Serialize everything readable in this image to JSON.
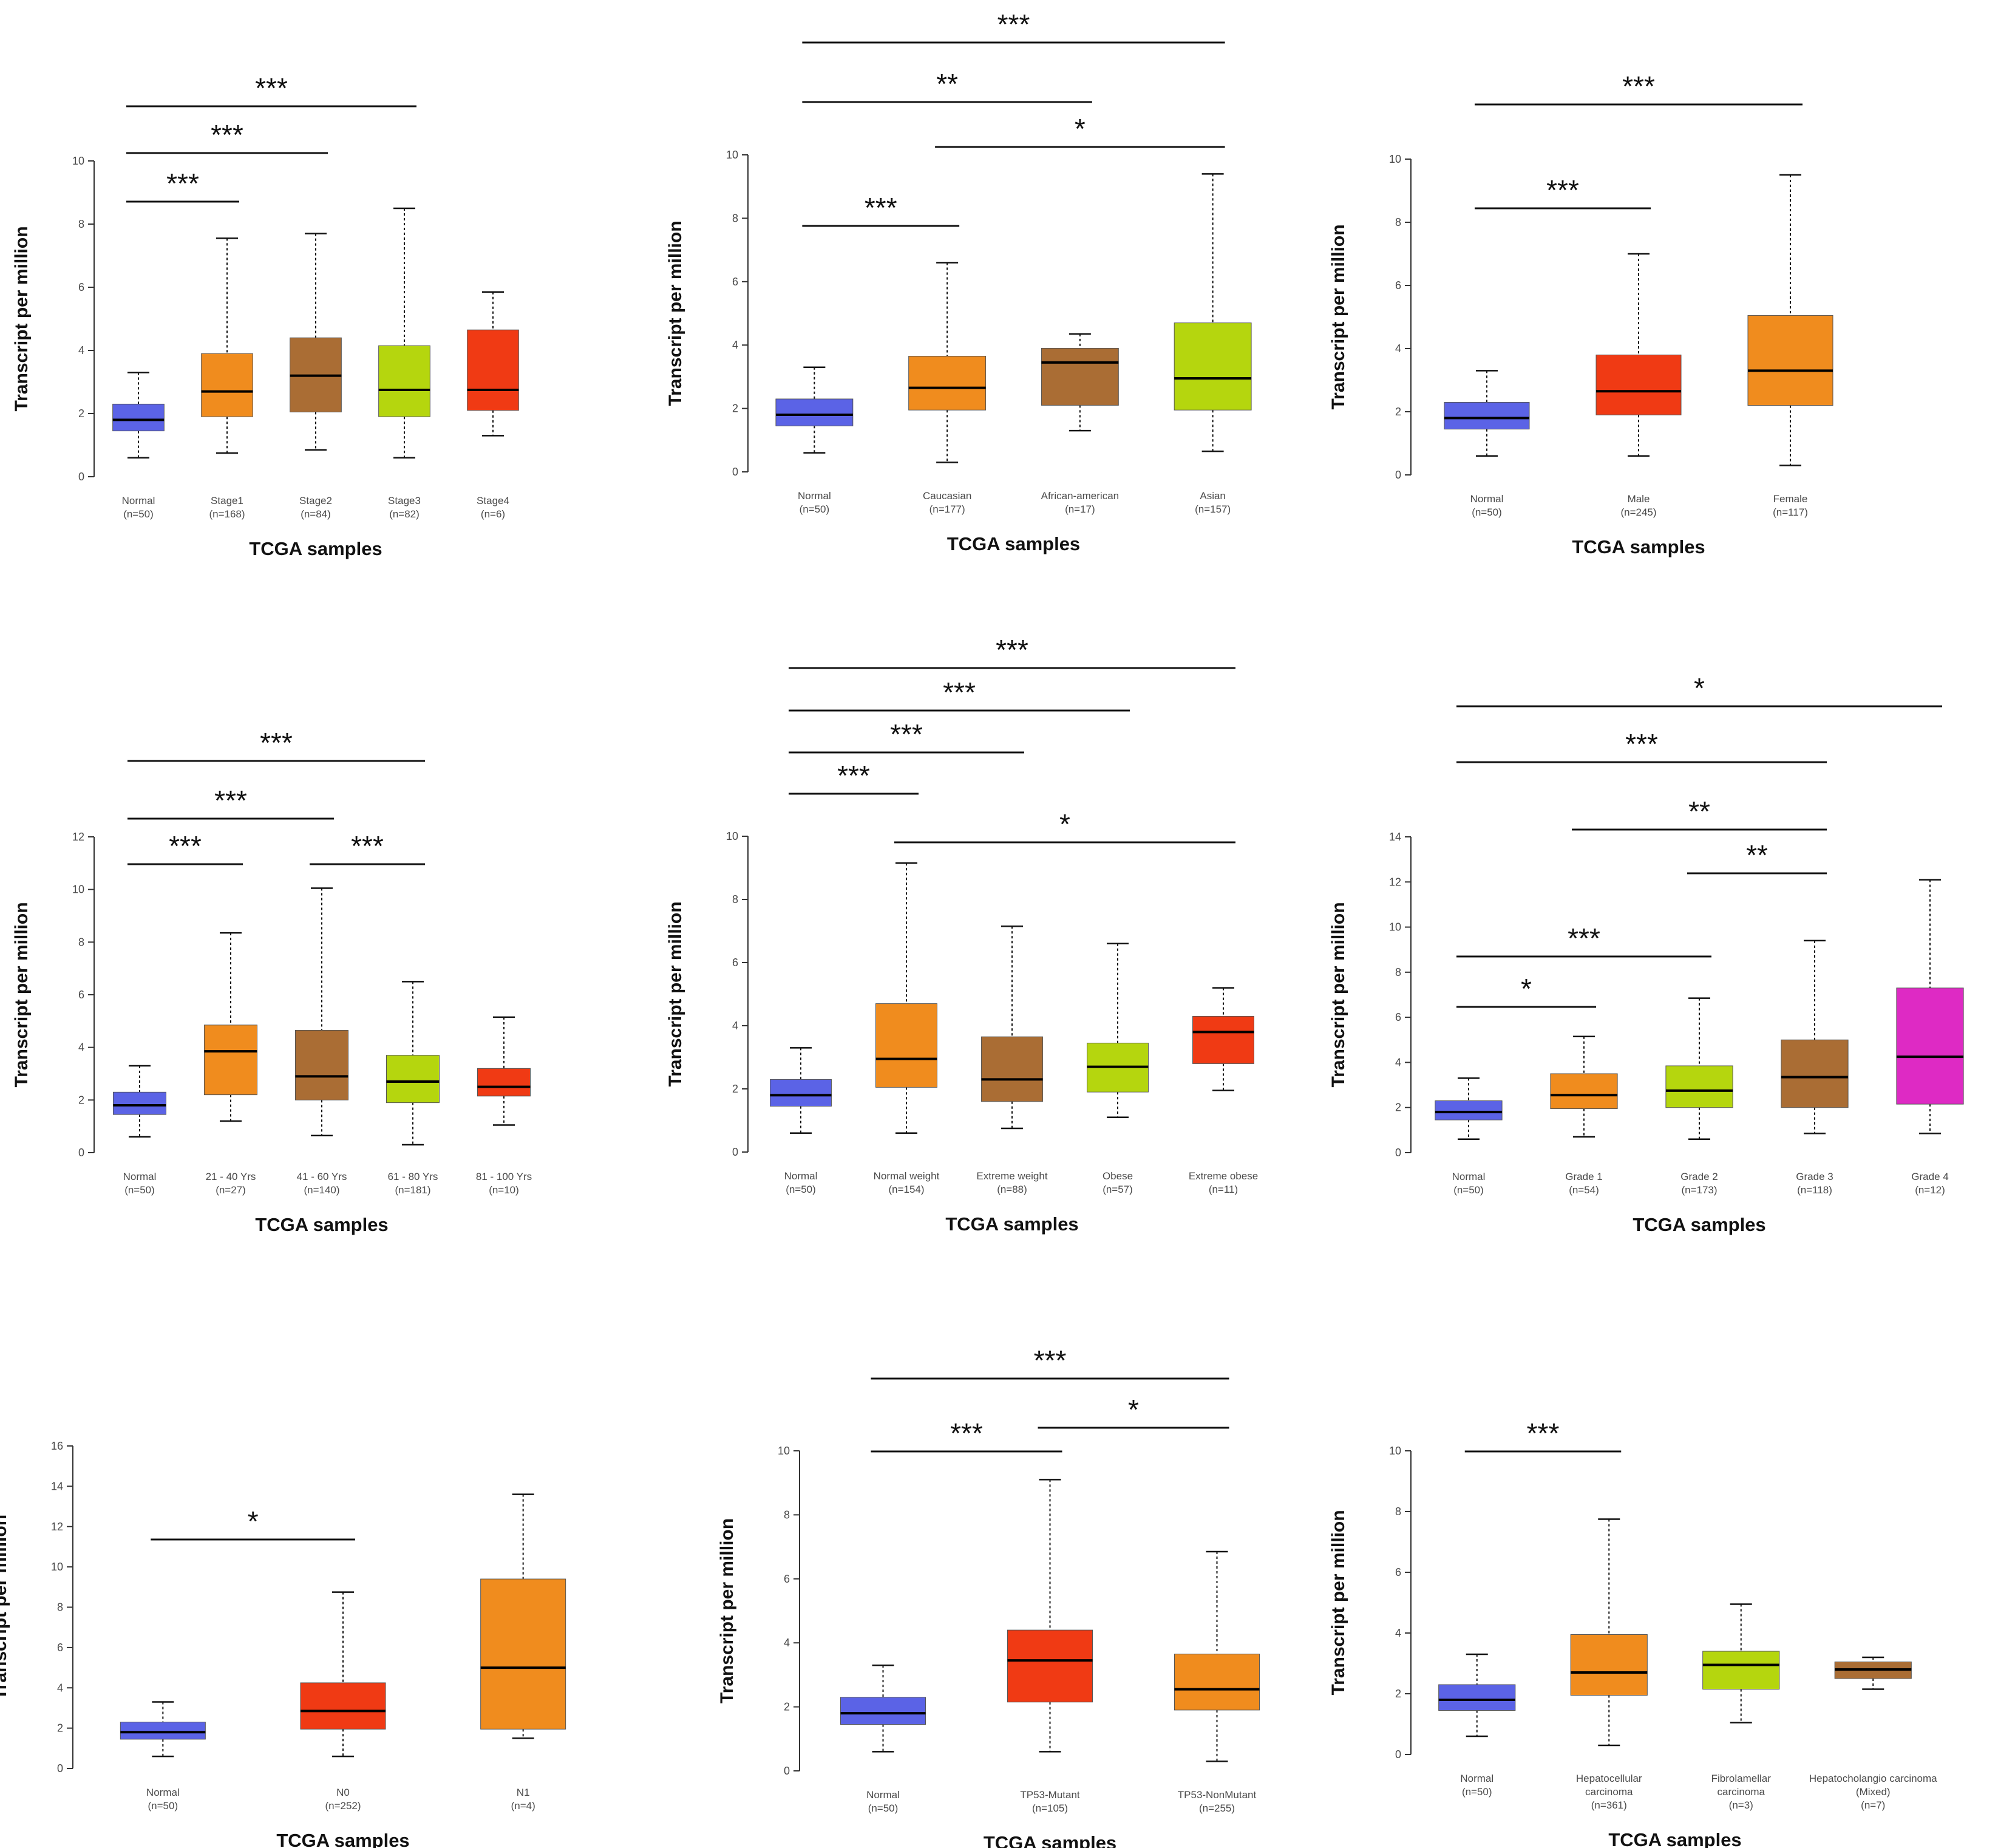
{
  "chart_data": [
    {
      "type": "boxplot",
      "title": "",
      "ylabel": "Transcript per million",
      "xlabel": "TCGA samples",
      "ylim": [
        0,
        10
      ],
      "yticks": [
        0,
        2,
        4,
        6,
        8,
        10
      ],
      "categories": [
        {
          "name": "Normal",
          "n": "(n=50)",
          "color": "#5b63e6",
          "min": 0.6,
          "q1": 1.45,
          "median": 1.8,
          "q3": 2.3,
          "max": 3.3
        },
        {
          "name": "Stage1",
          "n": "(n=168)",
          "color": "#f08c1e",
          "min": 0.75,
          "q1": 1.9,
          "median": 2.7,
          "q3": 3.9,
          "max": 7.55
        },
        {
          "name": "Stage2",
          "n": "(n=84)",
          "color": "#aa6d34",
          "min": 0.85,
          "q1": 2.05,
          "median": 3.2,
          "q3": 4.4,
          "max": 7.7
        },
        {
          "name": "Stage3",
          "n": "(n=82)",
          "color": "#b5d60e",
          "min": 0.6,
          "q1": 1.9,
          "median": 2.75,
          "q3": 4.15,
          "max": 8.5
        },
        {
          "name": "Stage4",
          "n": "(n=6)",
          "color": "#f03a14",
          "min": 1.3,
          "q1": 2.1,
          "median": 2.75,
          "q3": 4.65,
          "max": 5.85
        }
      ],
      "significance": [
        {
          "from": 0,
          "to": 3,
          "label": "***"
        },
        {
          "from": 0,
          "to": 2,
          "label": "***"
        },
        {
          "from": 0,
          "to": 1,
          "label": "***"
        }
      ]
    },
    {
      "type": "boxplot",
      "title": "",
      "ylabel": "Transcript per million",
      "xlabel": "TCGA samples",
      "ylim": [
        0,
        10
      ],
      "yticks": [
        0,
        2,
        4,
        6,
        8,
        10
      ],
      "categories": [
        {
          "name": "Normal",
          "n": "(n=50)",
          "color": "#5b63e6",
          "min": 0.6,
          "q1": 1.45,
          "median": 1.8,
          "q3": 2.3,
          "max": 3.3
        },
        {
          "name": "Caucasian",
          "n": "(n=177)",
          "color": "#f08c1e",
          "min": 0.3,
          "q1": 1.95,
          "median": 2.65,
          "q3": 3.65,
          "max": 6.6
        },
        {
          "name": "African-american",
          "n": "(n=17)",
          "color": "#aa6d34",
          "min": 1.3,
          "q1": 2.1,
          "median": 3.45,
          "q3": 3.9,
          "max": 4.35
        },
        {
          "name": "Asian",
          "n": "(n=157)",
          "color": "#b5d60e",
          "min": 0.65,
          "q1": 1.95,
          "median": 2.95,
          "q3": 4.7,
          "max": 9.4
        }
      ],
      "significance": [
        {
          "from": 0,
          "to": 3,
          "label": "***"
        },
        {
          "from": 0,
          "to": 2,
          "label": "**"
        },
        {
          "from": 1,
          "to": 3,
          "label": "*"
        },
        {
          "from": 0,
          "to": 1,
          "label": "***"
        }
      ]
    },
    {
      "type": "boxplot",
      "title": "",
      "ylabel": "Transcript per million",
      "xlabel": "TCGA samples",
      "ylim": [
        0,
        10
      ],
      "yticks": [
        0,
        2,
        4,
        6,
        8,
        10
      ],
      "categories": [
        {
          "name": "Normal",
          "n": "(n=50)",
          "color": "#5b63e6",
          "min": 0.6,
          "q1": 1.45,
          "median": 1.8,
          "q3": 2.3,
          "max": 3.3
        },
        {
          "name": "Male",
          "n": "(n=245)",
          "color": "#f03a14",
          "min": 0.6,
          "q1": 1.9,
          "median": 2.65,
          "q3": 3.8,
          "max": 7.0
        },
        {
          "name": "Female",
          "n": "(n=117)",
          "color": "#f08c1e",
          "min": 0.3,
          "q1": 2.2,
          "median": 3.3,
          "q3": 5.05,
          "max": 9.5
        }
      ],
      "significance": [
        {
          "from": 0,
          "to": 2,
          "label": "***"
        },
        {
          "from": 0,
          "to": 1,
          "label": "***"
        }
      ]
    },
    {
      "type": "boxplot",
      "title": "",
      "ylabel": "Transcript per million",
      "xlabel": "TCGA samples",
      "ylim": [
        0,
        12
      ],
      "yticks": [
        0,
        2,
        4,
        6,
        8,
        10,
        12
      ],
      "categories": [
        {
          "name": "Normal",
          "n": "(n=50)",
          "color": "#5b63e6",
          "min": 0.6,
          "q1": 1.45,
          "median": 1.8,
          "q3": 2.3,
          "max": 3.3
        },
        {
          "name": "21 - 40 Yrs",
          "n": "(n=27)",
          "color": "#f08c1e",
          "min": 1.2,
          "q1": 2.2,
          "median": 3.85,
          "q3": 4.85,
          "max": 8.35
        },
        {
          "name": "41 - 60 Yrs",
          "n": "(n=140)",
          "color": "#aa6d34",
          "min": 0.65,
          "q1": 2.0,
          "median": 2.9,
          "q3": 4.65,
          "max": 10.05
        },
        {
          "name": "61 - 80 Yrs",
          "n": "(n=181)",
          "color": "#b5d60e",
          "min": 0.3,
          "q1": 1.9,
          "median": 2.7,
          "q3": 3.7,
          "max": 6.5
        },
        {
          "name": "81 - 100 Yrs",
          "n": "(n=10)",
          "color": "#f03a14",
          "min": 1.05,
          "q1": 2.15,
          "median": 2.5,
          "q3": 3.2,
          "max": 5.15
        }
      ],
      "significance": [
        {
          "from": 0,
          "to": 3,
          "label": "***"
        },
        {
          "from": 0,
          "to": 2,
          "label": "***"
        },
        {
          "from": 0,
          "to": 1,
          "label": "***"
        },
        {
          "from": 2,
          "to": 3,
          "label": "***"
        }
      ]
    },
    {
      "type": "boxplot",
      "title": "",
      "ylabel": "Transcript per million",
      "xlabel": "TCGA samples",
      "ylim": [
        0,
        10
      ],
      "yticks": [
        0,
        2,
        4,
        6,
        8,
        10
      ],
      "categories": [
        {
          "name": "Normal",
          "n": "(n=50)",
          "color": "#5b63e6",
          "min": 0.6,
          "q1": 1.45,
          "median": 1.8,
          "q3": 2.3,
          "max": 3.3
        },
        {
          "name": "Normal weight",
          "n": "(n=154)",
          "color": "#f08c1e",
          "min": 0.6,
          "q1": 2.05,
          "median": 2.95,
          "q3": 4.7,
          "max": 9.15
        },
        {
          "name": "Extreme weight",
          "n": "(n=88)",
          "color": "#aa6d34",
          "min": 0.75,
          "q1": 1.6,
          "median": 2.3,
          "q3": 3.65,
          "max": 7.15
        },
        {
          "name": "Obese",
          "n": "(n=57)",
          "color": "#b5d60e",
          "min": 1.1,
          "q1": 1.9,
          "median": 2.7,
          "q3": 3.45,
          "max": 6.6
        },
        {
          "name": "Extreme obese",
          "n": "(n=11)",
          "color": "#f03a14",
          "min": 1.95,
          "q1": 2.8,
          "median": 3.8,
          "q3": 4.3,
          "max": 5.2
        }
      ],
      "significance": [
        {
          "from": 0,
          "to": 4,
          "label": "***"
        },
        {
          "from": 0,
          "to": 3,
          "label": "***"
        },
        {
          "from": 0,
          "to": 2,
          "label": "***"
        },
        {
          "from": 0,
          "to": 1,
          "label": "***"
        },
        {
          "from": 1,
          "to": 4,
          "label": "*"
        }
      ]
    },
    {
      "type": "boxplot",
      "title": "",
      "ylabel": "Transcript per million",
      "xlabel": "TCGA samples",
      "ylim": [
        0,
        14
      ],
      "yticks": [
        0,
        2,
        4,
        6,
        8,
        10,
        12,
        14
      ],
      "categories": [
        {
          "name": "Normal",
          "n": "(n=50)",
          "color": "#5b63e6",
          "min": 0.6,
          "q1": 1.45,
          "median": 1.8,
          "q3": 2.3,
          "max": 3.3
        },
        {
          "name": "Grade 1",
          "n": "(n=54)",
          "color": "#f08c1e",
          "min": 0.7,
          "q1": 1.95,
          "median": 2.55,
          "q3": 3.5,
          "max": 5.15
        },
        {
          "name": "Grade 2",
          "n": "(n=173)",
          "color": "#b5d60e",
          "min": 0.6,
          "q1": 2.0,
          "median": 2.75,
          "q3": 3.85,
          "max": 6.85
        },
        {
          "name": "Grade 3",
          "n": "(n=118)",
          "color": "#aa6d34",
          "min": 0.85,
          "q1": 2.0,
          "median": 3.35,
          "q3": 5.0,
          "max": 9.4
        },
        {
          "name": "Grade 4",
          "n": "(n=12)",
          "color": "#de2ac4",
          "min": 0.85,
          "q1": 2.15,
          "median": 4.25,
          "q3": 7.3,
          "max": 12.1
        }
      ],
      "significance": [
        {
          "from": 0,
          "to": 4,
          "label": "*"
        },
        {
          "from": 0,
          "to": 3,
          "label": "***"
        },
        {
          "from": 1,
          "to": 3,
          "label": "**"
        },
        {
          "from": 2,
          "to": 3,
          "label": "**"
        },
        {
          "from": 0,
          "to": 2,
          "label": "***"
        },
        {
          "from": 0,
          "to": 1,
          "label": "*"
        }
      ]
    },
    {
      "type": "boxplot",
      "title": "",
      "ylabel": "Transcript per million",
      "xlabel": "TCGA samples",
      "ylim": [
        0,
        16
      ],
      "yticks": [
        0,
        2,
        4,
        6,
        8,
        10,
        12,
        14,
        16
      ],
      "categories": [
        {
          "name": "Normal",
          "n": "(n=50)",
          "color": "#5b63e6",
          "min": 0.6,
          "q1": 1.45,
          "median": 1.8,
          "q3": 2.3,
          "max": 3.3
        },
        {
          "name": "N0",
          "n": "(n=252)",
          "color": "#f03a14",
          "min": 0.6,
          "q1": 1.95,
          "median": 2.85,
          "q3": 4.25,
          "max": 8.75
        },
        {
          "name": "N1",
          "n": "(n=4)",
          "color": "#f08c1e",
          "min": 1.5,
          "q1": 1.95,
          "median": 5.0,
          "q3": 9.4,
          "max": 13.6
        }
      ],
      "significance": [
        {
          "from": 0,
          "to": 1,
          "label": "*"
        }
      ]
    },
    {
      "type": "boxplot",
      "title": "",
      "ylabel": "Transcript per million",
      "xlabel": "TCGA samples",
      "ylim": [
        0,
        10
      ],
      "yticks": [
        0,
        2,
        4,
        6,
        8,
        10
      ],
      "categories": [
        {
          "name": "Normal",
          "n": "(n=50)",
          "color": "#5b63e6",
          "min": 0.6,
          "q1": 1.45,
          "median": 1.8,
          "q3": 2.3,
          "max": 3.3
        },
        {
          "name": "TP53-Mutant",
          "n": "(n=105)",
          "color": "#f03a14",
          "min": 0.6,
          "q1": 2.15,
          "median": 3.45,
          "q3": 4.4,
          "max": 9.1
        },
        {
          "name": "TP53-NonMutant",
          "n": "(n=255)",
          "color": "#f08c1e",
          "min": 0.3,
          "q1": 1.9,
          "median": 2.55,
          "q3": 3.65,
          "max": 6.85
        }
      ],
      "significance": [
        {
          "from": 0,
          "to": 2,
          "label": "***"
        },
        {
          "from": 1,
          "to": 2,
          "label": "*"
        },
        {
          "from": 0,
          "to": 1,
          "label": "***"
        }
      ]
    },
    {
      "type": "boxplot",
      "title": "",
      "ylabel": "Transcript per million",
      "xlabel": "TCGA samples",
      "ylim": [
        0,
        10
      ],
      "yticks": [
        0,
        2,
        4,
        6,
        8,
        10
      ],
      "categories": [
        {
          "name": "Normal",
          "n": "(n=50)",
          "color": "#5b63e6",
          "min": 0.6,
          "q1": 1.45,
          "median": 1.8,
          "q3": 2.3,
          "max": 3.3
        },
        {
          "name": "Hepatocellular carcinoma",
          "n": "(n=361)",
          "color": "#f08c1e",
          "min": 0.3,
          "q1": 1.95,
          "median": 2.7,
          "q3": 3.95,
          "max": 7.75
        },
        {
          "name": "Fibrolamellar carcinoma",
          "n": "(n=3)",
          "color": "#b5d60e",
          "min": 1.05,
          "q1": 2.15,
          "median": 2.95,
          "q3": 3.4,
          "max": 4.95
        },
        {
          "name": "Hepatocholangio carcinoma (Mixed)",
          "n": "(n=7)",
          "color": "#aa6d34",
          "min": 2.15,
          "q1": 2.5,
          "median": 2.8,
          "q3": 3.05,
          "max": 3.2
        }
      ],
      "significance": [
        {
          "from": 0,
          "to": 1,
          "label": "***"
        }
      ]
    }
  ]
}
